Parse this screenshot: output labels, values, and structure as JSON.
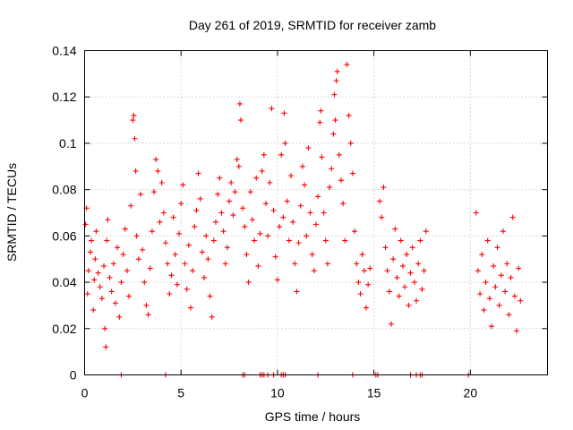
{
  "chart_data": {
    "type": "scatter",
    "title": "Day 261 of 2019, SRMTID for receiver zamb",
    "xlabel": "GPS time / hours",
    "ylabel": "SRMTID / TECUs",
    "xlim": [
      0,
      24
    ],
    "ylim": [
      0,
      0.14
    ],
    "x_ticks": [
      0,
      5,
      10,
      15,
      20
    ],
    "x_tick_labels": [
      "0",
      "5",
      "10",
      "15",
      "20"
    ],
    "y_ticks": [
      0,
      0.02,
      0.04,
      0.06,
      0.08,
      0.1,
      0.12,
      0.14
    ],
    "y_tick_labels": [
      "0",
      "0.02",
      "0.04",
      "0.06",
      "0.08",
      "0.1",
      "0.12",
      "0.14"
    ],
    "grid": true,
    "marker": "+",
    "color": "#ff0000",
    "series": [
      {
        "name": "SRMTID",
        "points": [
          [
            0.05,
            0.065
          ],
          [
            0.1,
            0.072
          ],
          [
            0.15,
            0.035
          ],
          [
            0.2,
            0.045
          ],
          [
            0.3,
            0.053
          ],
          [
            0.35,
            0.058
          ],
          [
            0.45,
            0.028
          ],
          [
            0.5,
            0.041
          ],
          [
            0.55,
            0.05
          ],
          [
            0.6,
            0.062
          ],
          [
            0.7,
            0.044
          ],
          [
            0.8,
            0.038
          ],
          [
            0.9,
            0.033
          ],
          [
            1.0,
            0.047
          ],
          [
            1.05,
            0.02
          ],
          [
            1.1,
            0.012
          ],
          [
            1.15,
            0.058
          ],
          [
            1.2,
            0.067
          ],
          [
            1.3,
            0.042
          ],
          [
            1.4,
            0.036
          ],
          [
            1.5,
            0.048
          ],
          [
            1.6,
            0.031
          ],
          [
            1.7,
            0.055
          ],
          [
            1.8,
            0.025
          ],
          [
            1.9,
            0.04
          ],
          [
            2.0,
            0.052
          ],
          [
            2.1,
            0.063
          ],
          [
            2.2,
            0.045
          ],
          [
            2.3,
            0.034
          ],
          [
            2.4,
            0.073
          ],
          [
            2.5,
            0.11
          ],
          [
            2.55,
            0.112
          ],
          [
            2.6,
            0.102
          ],
          [
            2.65,
            0.088
          ],
          [
            2.7,
            0.06
          ],
          [
            2.8,
            0.05
          ],
          [
            2.9,
            0.078
          ],
          [
            3.0,
            0.054
          ],
          [
            3.1,
            0.04
          ],
          [
            3.2,
            0.03
          ],
          [
            3.3,
            0.026
          ],
          [
            3.4,
            0.046
          ],
          [
            3.5,
            0.062
          ],
          [
            3.6,
            0.079
          ],
          [
            3.7,
            0.093
          ],
          [
            3.8,
            0.088
          ],
          [
            3.9,
            0.066
          ],
          [
            4.0,
            0.083
          ],
          [
            4.1,
            0.07
          ],
          [
            4.2,
            0.057
          ],
          [
            4.3,
            0.048
          ],
          [
            4.4,
            0.035
          ],
          [
            4.5,
            0.043
          ],
          [
            4.6,
            0.068
          ],
          [
            4.7,
            0.052
          ],
          [
            4.8,
            0.039
          ],
          [
            4.9,
            0.061
          ],
          [
            5.0,
            0.074
          ],
          [
            5.1,
            0.082
          ],
          [
            5.2,
            0.048
          ],
          [
            5.3,
            0.037
          ],
          [
            5.4,
            0.056
          ],
          [
            5.5,
            0.029
          ],
          [
            5.6,
            0.045
          ],
          [
            5.7,
            0.064
          ],
          [
            5.8,
            0.071
          ],
          [
            5.9,
            0.087
          ],
          [
            6.0,
            0.076
          ],
          [
            6.1,
            0.053
          ],
          [
            6.2,
            0.042
          ],
          [
            6.3,
            0.06
          ],
          [
            6.4,
            0.05
          ],
          [
            6.5,
            0.034
          ],
          [
            6.6,
            0.025
          ],
          [
            6.7,
            0.058
          ],
          [
            6.8,
            0.066
          ],
          [
            6.9,
            0.078
          ],
          [
            7.0,
            0.085
          ],
          [
            7.1,
            0.07
          ],
          [
            7.2,
            0.062
          ],
          [
            7.3,
            0.048
          ],
          [
            7.4,
            0.055
          ],
          [
            7.5,
            0.075
          ],
          [
            7.6,
            0.083
          ],
          [
            7.7,
            0.069
          ],
          [
            7.8,
            0.079
          ],
          [
            7.9,
            0.093
          ],
          [
            8.0,
            0.09
          ],
          [
            8.05,
            0.117
          ],
          [
            8.1,
            0.11
          ],
          [
            8.2,
            0.072
          ],
          [
            8.3,
            0.064
          ],
          [
            8.4,
            0.052
          ],
          [
            8.5,
            0.04
          ],
          [
            8.6,
            0.079
          ],
          [
            8.7,
            0.067
          ],
          [
            8.8,
            0.058
          ],
          [
            8.9,
            0.085
          ],
          [
            9.0,
            0.047
          ],
          [
            9.1,
            0.061
          ],
          [
            9.2,
            0.088
          ],
          [
            9.3,
            0.095
          ],
          [
            9.4,
            0.074
          ],
          [
            9.5,
            0.06
          ],
          [
            9.6,
            0.083
          ],
          [
            9.7,
            0.115
          ],
          [
            9.8,
            0.071
          ],
          [
            9.9,
            0.051
          ],
          [
            10.0,
            0.041
          ],
          [
            10.1,
            0.064
          ],
          [
            10.2,
            0.095
          ],
          [
            10.3,
            0.068
          ],
          [
            10.35,
            0.113
          ],
          [
            10.4,
            0.1
          ],
          [
            10.5,
            0.075
          ],
          [
            10.6,
            0.058
          ],
          [
            10.7,
            0.086
          ],
          [
            10.8,
            0.066
          ],
          [
            10.9,
            0.048
          ],
          [
            11.0,
            0.036
          ],
          [
            11.1,
            0.057
          ],
          [
            11.2,
            0.073
          ],
          [
            11.3,
            0.09
          ],
          [
            11.4,
            0.082
          ],
          [
            11.5,
            0.06
          ],
          [
            11.6,
            0.098
          ],
          [
            11.7,
            0.07
          ],
          [
            11.8,
            0.052
          ],
          [
            11.9,
            0.045
          ],
          [
            12.0,
            0.065
          ],
          [
            12.1,
            0.077
          ],
          [
            12.2,
            0.109
          ],
          [
            12.25,
            0.114
          ],
          [
            12.3,
            0.094
          ],
          [
            12.4,
            0.07
          ],
          [
            12.5,
            0.058
          ],
          [
            12.6,
            0.048
          ],
          [
            12.7,
            0.081
          ],
          [
            12.8,
            0.089
          ],
          [
            12.9,
            0.104
          ],
          [
            12.95,
            0.121
          ],
          [
            13.0,
            0.11
          ],
          [
            13.05,
            0.127
          ],
          [
            13.1,
            0.131
          ],
          [
            13.2,
            0.095
          ],
          [
            13.3,
            0.084
          ],
          [
            13.4,
            0.074
          ],
          [
            13.5,
            0.058
          ],
          [
            13.6,
            0.134
          ],
          [
            13.7,
            0.112
          ],
          [
            13.8,
            0.1
          ],
          [
            13.9,
            0.087
          ],
          [
            14.0,
            0.062
          ],
          [
            14.1,
            0.048
          ],
          [
            14.2,
            0.04
          ],
          [
            14.3,
            0.035
          ],
          [
            14.4,
            0.052
          ],
          [
            14.5,
            0.045
          ],
          [
            14.6,
            0.029
          ],
          [
            14.7,
            0.039
          ],
          [
            14.8,
            0.046
          ],
          [
            15.3,
            0.075
          ],
          [
            15.4,
            0.068
          ],
          [
            15.5,
            0.081
          ],
          [
            15.6,
            0.055
          ],
          [
            15.7,
            0.045
          ],
          [
            15.8,
            0.036
          ],
          [
            15.9,
            0.022
          ],
          [
            16.0,
            0.05
          ],
          [
            16.1,
            0.063
          ],
          [
            16.2,
            0.042
          ],
          [
            16.3,
            0.034
          ],
          [
            16.4,
            0.058
          ],
          [
            16.5,
            0.047
          ],
          [
            16.6,
            0.038
          ],
          [
            16.7,
            0.052
          ],
          [
            16.8,
            0.03
          ],
          [
            16.9,
            0.044
          ],
          [
            17.0,
            0.055
          ],
          [
            17.1,
            0.04
          ],
          [
            17.2,
            0.032
          ],
          [
            17.3,
            0.048
          ],
          [
            17.4,
            0.058
          ],
          [
            17.5,
            0.037
          ],
          [
            17.6,
            0.045
          ],
          [
            17.7,
            0.062
          ],
          [
            20.3,
            0.07
          ],
          [
            20.4,
            0.045
          ],
          [
            20.5,
            0.035
          ],
          [
            20.6,
            0.052
          ],
          [
            20.7,
            0.028
          ],
          [
            20.8,
            0.04
          ],
          [
            20.9,
            0.058
          ],
          [
            21.0,
            0.033
          ],
          [
            21.1,
            0.021
          ],
          [
            21.2,
            0.047
          ],
          [
            21.3,
            0.038
          ],
          [
            21.4,
            0.055
          ],
          [
            21.5,
            0.03
          ],
          [
            21.6,
            0.043
          ],
          [
            21.7,
            0.062
          ],
          [
            21.8,
            0.036
          ],
          [
            21.9,
            0.048
          ],
          [
            22.0,
            0.026
          ],
          [
            22.1,
            0.042
          ],
          [
            22.2,
            0.068
          ],
          [
            22.3,
            0.034
          ],
          [
            22.4,
            0.019
          ],
          [
            22.5,
            0.046
          ],
          [
            22.6,
            0.032
          ]
        ]
      }
    ],
    "zero_markers_x": [
      1.9,
      4.2,
      8.2,
      8.3,
      9.1,
      9.2,
      9.3,
      9.5,
      9.8,
      10.2,
      10.3,
      10.4,
      12.1,
      13.9,
      15.1,
      15.2,
      16.9,
      17.2,
      17.4,
      17.5,
      19.9
    ]
  }
}
